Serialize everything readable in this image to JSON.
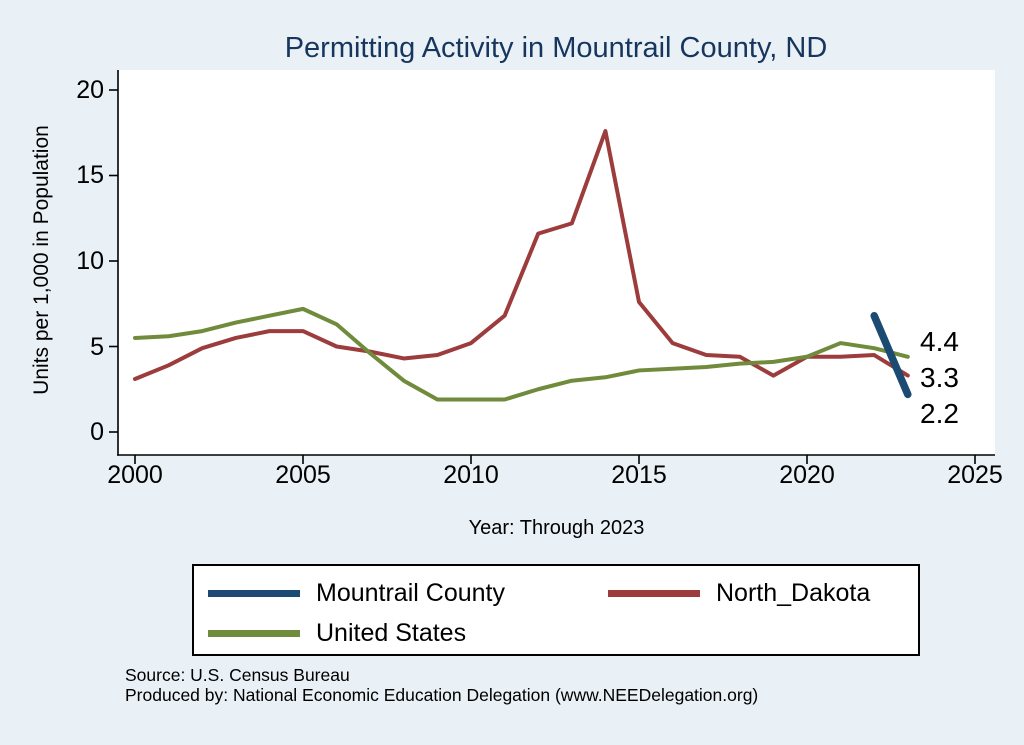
{
  "colors": {
    "background": "#e9f1f7",
    "title": "#17365d",
    "mountrail_county": "#1b4a73",
    "north_dakota": "#9d3c3c",
    "united_states": "#6f8b3b"
  },
  "footer": {
    "line1": "Source: U.S. Census Bureau",
    "line2": "Produced by: National Economic Education Delegation (www.NEEDelegation.org)"
  },
  "chart_data": {
    "type": "line",
    "title": "Permitting Activity in Mountrail County, ND",
    "xlabel": "Year: Through 2023",
    "ylabel": "Units per 1,000 in Population",
    "x_ticks": [
      2000,
      2005,
      2010,
      2015,
      2020,
      2025
    ],
    "y_ticks": [
      0,
      5,
      10,
      15,
      20
    ],
    "xlim": [
      1999.5,
      2025.6
    ],
    "ylim": [
      -1.35,
      21.2
    ],
    "grid": false,
    "legend_position": "bottom",
    "end_labels": [
      "4.4",
      "3.3",
      "2.2"
    ],
    "series": [
      {
        "name": "Mountrail County",
        "color": "#1b4a73",
        "width": 7.5,
        "x": [
          2022,
          2023
        ],
        "values": [
          6.8,
          2.2
        ]
      },
      {
        "name": "North_Dakota",
        "color": "#9d3c3c",
        "width": 4,
        "x": [
          2000,
          2001,
          2002,
          2003,
          2004,
          2005,
          2006,
          2007,
          2008,
          2009,
          2010,
          2011,
          2012,
          2013,
          2014,
          2015,
          2016,
          2017,
          2018,
          2019,
          2020,
          2021,
          2022,
          2023
        ],
        "values": [
          3.1,
          3.9,
          4.9,
          5.5,
          5.9,
          5.9,
          5.0,
          4.7,
          4.3,
          4.5,
          5.2,
          6.8,
          11.6,
          12.2,
          17.6,
          7.6,
          5.2,
          4.5,
          4.4,
          3.3,
          4.4,
          4.4,
          4.5,
          3.3
        ]
      },
      {
        "name": "United States",
        "color": "#6f8b3b",
        "width": 4,
        "x": [
          2000,
          2001,
          2002,
          2003,
          2004,
          2005,
          2006,
          2007,
          2008,
          2009,
          2010,
          2011,
          2012,
          2013,
          2014,
          2015,
          2016,
          2017,
          2018,
          2019,
          2020,
          2021,
          2022,
          2023
        ],
        "values": [
          5.5,
          5.6,
          5.9,
          6.4,
          6.8,
          7.2,
          6.3,
          4.6,
          3.0,
          1.9,
          1.9,
          1.9,
          2.5,
          3.0,
          3.2,
          3.6,
          3.7,
          3.8,
          4.0,
          4.1,
          4.4,
          5.2,
          4.9,
          4.4
        ]
      }
    ]
  }
}
